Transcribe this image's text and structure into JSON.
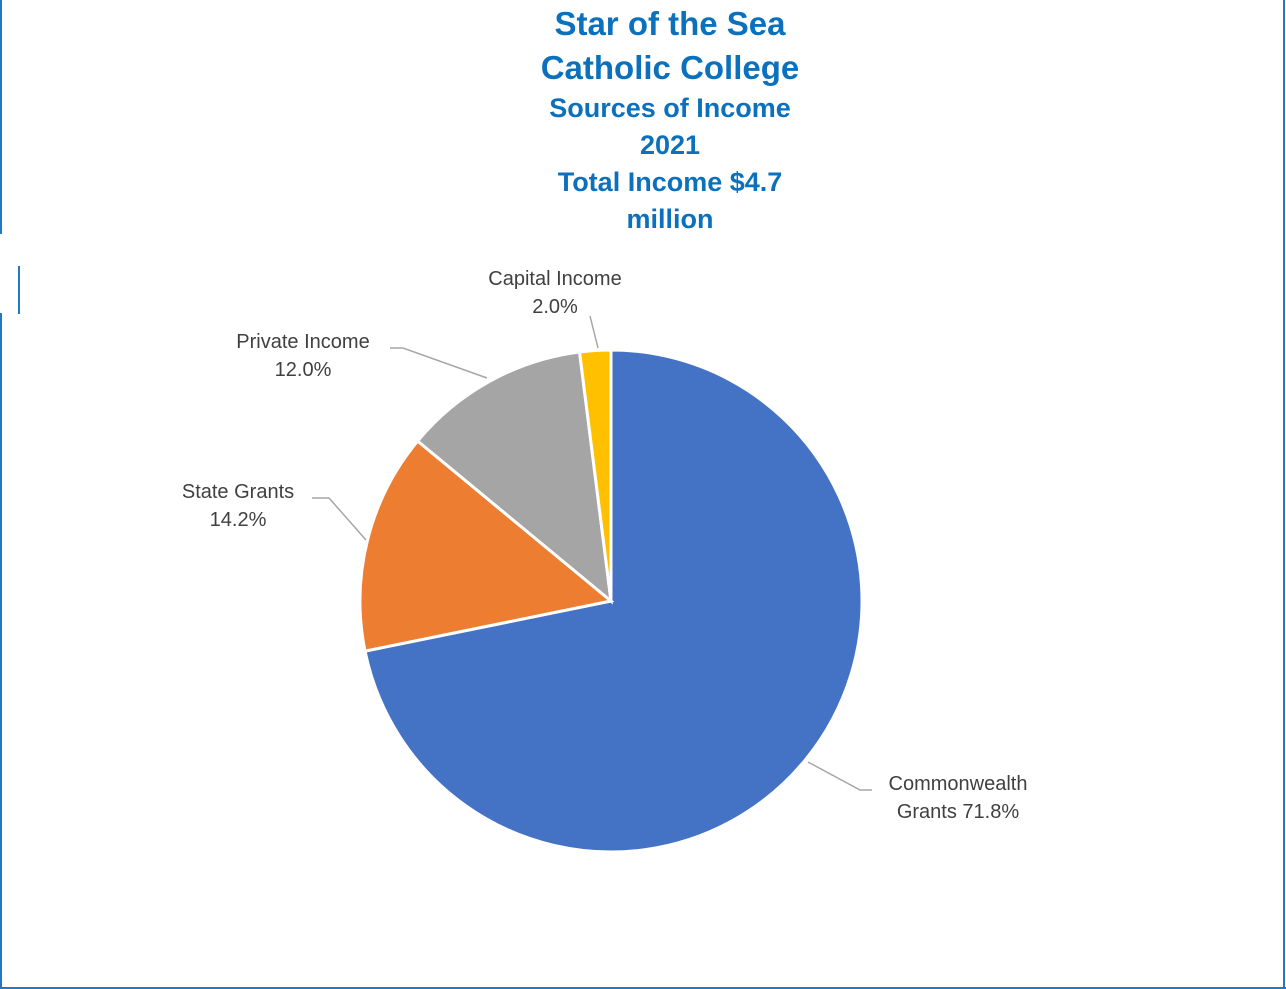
{
  "chart_data": {
    "type": "pie",
    "title_lines": [
      "Star of the Sea",
      "Catholic College"
    ],
    "subtitle_lines": [
      "Sources of Income",
      "2021",
      "Total Income $4.7",
      "million"
    ],
    "slices": [
      {
        "label": "Commonwealth Grants",
        "value": 71.8,
        "value_text": "71.8%",
        "color": "#4472c4"
      },
      {
        "label": "State Grants",
        "value": 14.2,
        "value_text": "14.2%",
        "color": "#ed7d31"
      },
      {
        "label": "Private Income",
        "value": 12.0,
        "value_text": "12.0%",
        "color": "#a5a5a5"
      },
      {
        "label": "Capital Income",
        "value": 2.0,
        "value_text": "2.0%",
        "color": "#ffc000"
      }
    ],
    "title_color": "#0b71bd",
    "frame_color": "#1f78c8"
  }
}
